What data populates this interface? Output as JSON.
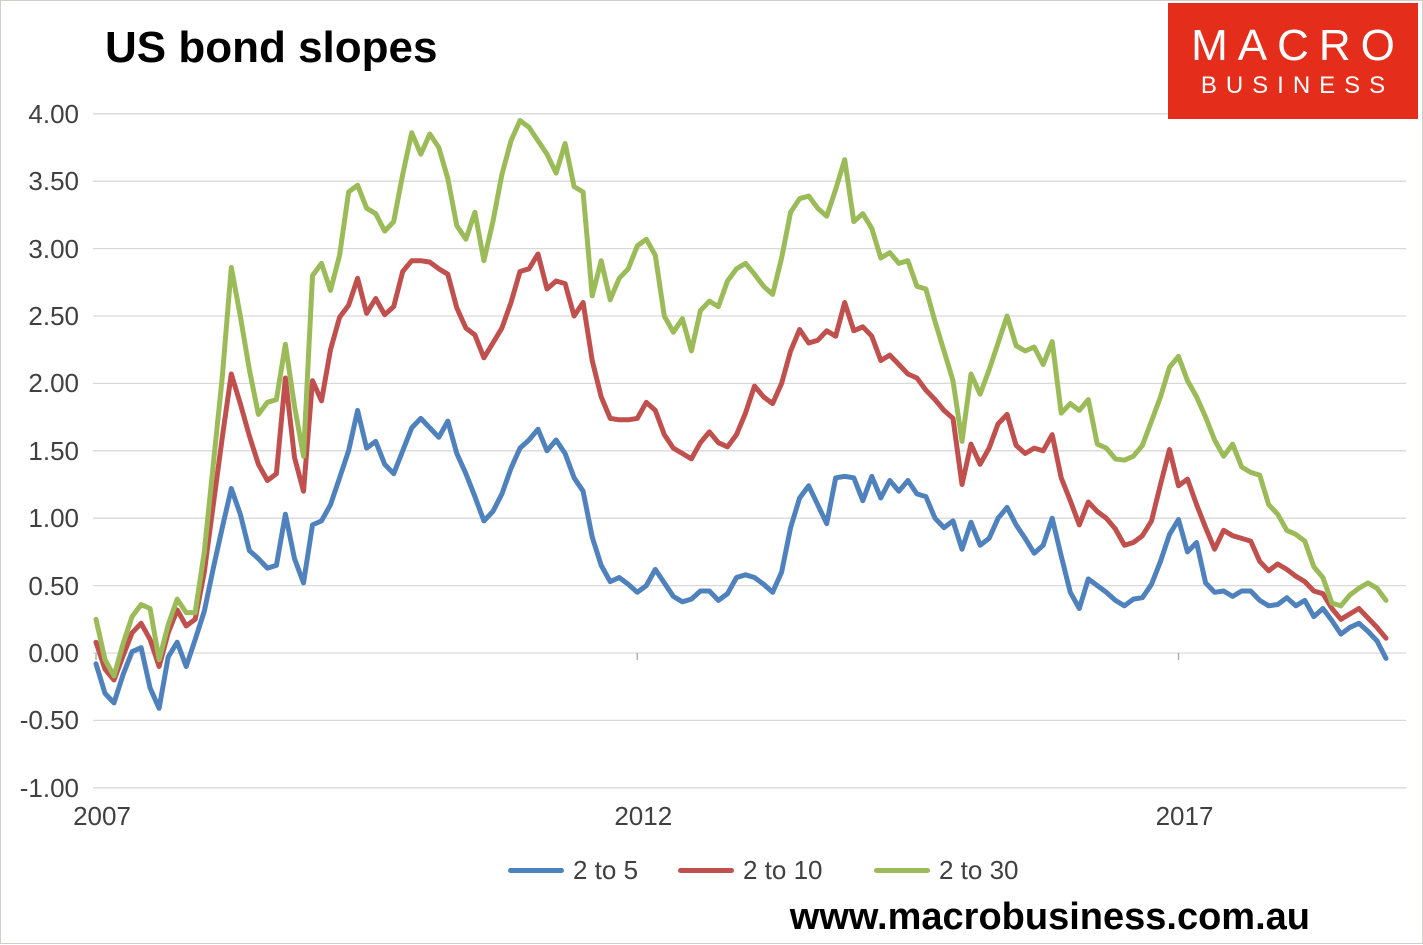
{
  "title": "US bond slopes",
  "logo": {
    "line1": "MACRO",
    "line2": "BUSINESS",
    "bg_color": "#e52d1c",
    "text_color": "#ffffff"
  },
  "watermark": "www.macrobusiness.com.au",
  "chart_data": {
    "type": "line",
    "title": "US bond slopes",
    "xlabel": "",
    "ylabel": "",
    "ylim": [
      -1.0,
      4.0
    ],
    "ytick_step": 0.5,
    "grid": true,
    "legend_position": "bottom",
    "y_tick_labels": [
      "4.00",
      "3.50",
      "3.00",
      "2.50",
      "2.00",
      "1.50",
      "1.00",
      "0.50",
      "0.00",
      "-0.50",
      "-1.00"
    ],
    "x_ticks": [
      {
        "label": "2007",
        "month_index": 0
      },
      {
        "label": "2012",
        "month_index": 60
      },
      {
        "label": "2017",
        "month_index": 120
      }
    ],
    "categories": [
      "2007-01",
      "2007-02",
      "2007-03",
      "2007-04",
      "2007-05",
      "2007-06",
      "2007-07",
      "2007-08",
      "2007-09",
      "2007-10",
      "2007-11",
      "2007-12",
      "2008-01",
      "2008-02",
      "2008-03",
      "2008-04",
      "2008-05",
      "2008-06",
      "2008-07",
      "2008-08",
      "2008-09",
      "2008-10",
      "2008-11",
      "2008-12",
      "2009-01",
      "2009-02",
      "2009-03",
      "2009-04",
      "2009-05",
      "2009-06",
      "2009-07",
      "2009-08",
      "2009-09",
      "2009-10",
      "2009-11",
      "2009-12",
      "2010-01",
      "2010-02",
      "2010-03",
      "2010-04",
      "2010-05",
      "2010-06",
      "2010-07",
      "2010-08",
      "2010-09",
      "2010-10",
      "2010-11",
      "2010-12",
      "2011-01",
      "2011-02",
      "2011-03",
      "2011-04",
      "2011-05",
      "2011-06",
      "2011-07",
      "2011-08",
      "2011-09",
      "2011-10",
      "2011-11",
      "2011-12",
      "2012-01",
      "2012-02",
      "2012-03",
      "2012-04",
      "2012-05",
      "2012-06",
      "2012-07",
      "2012-08",
      "2012-09",
      "2012-10",
      "2012-11",
      "2012-12",
      "2013-01",
      "2013-02",
      "2013-03",
      "2013-04",
      "2013-05",
      "2013-06",
      "2013-07",
      "2013-08",
      "2013-09",
      "2013-10",
      "2013-11",
      "2013-12",
      "2014-01",
      "2014-02",
      "2014-03",
      "2014-04",
      "2014-05",
      "2014-06",
      "2014-07",
      "2014-08",
      "2014-09",
      "2014-10",
      "2014-11",
      "2014-12",
      "2015-01",
      "2015-02",
      "2015-03",
      "2015-04",
      "2015-05",
      "2015-06",
      "2015-07",
      "2015-08",
      "2015-09",
      "2015-10",
      "2015-11",
      "2015-12",
      "2016-01",
      "2016-02",
      "2016-03",
      "2016-04",
      "2016-05",
      "2016-06",
      "2016-07",
      "2016-08",
      "2016-09",
      "2016-10",
      "2016-11",
      "2016-12",
      "2017-01",
      "2017-02",
      "2017-03",
      "2017-04",
      "2017-05",
      "2017-06",
      "2017-07",
      "2017-08",
      "2017-09",
      "2017-10",
      "2017-11",
      "2017-12",
      "2018-01",
      "2018-02",
      "2018-03",
      "2018-04",
      "2018-05",
      "2018-06",
      "2018-07",
      "2018-08",
      "2018-09",
      "2018-10",
      "2018-11",
      "2018-12"
    ],
    "series": [
      {
        "name": "2 to 5",
        "color": "#4F81BD",
        "values": [
          -0.08,
          -0.3,
          -0.37,
          -0.16,
          0.01,
          0.04,
          -0.26,
          -0.41,
          -0.03,
          0.08,
          -0.1,
          0.1,
          0.31,
          0.63,
          0.93,
          1.22,
          1.03,
          0.76,
          0.7,
          0.63,
          0.65,
          1.03,
          0.7,
          0.52,
          0.95,
          0.98,
          1.1,
          1.3,
          1.5,
          1.8,
          1.52,
          1.57,
          1.4,
          1.33,
          1.5,
          1.67,
          1.74,
          1.67,
          1.6,
          1.72,
          1.48,
          1.33,
          1.16,
          0.98,
          1.05,
          1.18,
          1.37,
          1.52,
          1.58,
          1.66,
          1.5,
          1.58,
          1.48,
          1.3,
          1.2,
          0.86,
          0.65,
          0.53,
          0.56,
          0.51,
          0.45,
          0.5,
          0.62,
          0.52,
          0.42,
          0.38,
          0.4,
          0.46,
          0.46,
          0.39,
          0.44,
          0.56,
          0.58,
          0.56,
          0.51,
          0.45,
          0.6,
          0.93,
          1.15,
          1.24,
          1.1,
          0.96,
          1.3,
          1.31,
          1.3,
          1.13,
          1.31,
          1.15,
          1.28,
          1.2,
          1.28,
          1.18,
          1.16,
          1.0,
          0.93,
          0.98,
          0.77,
          0.97,
          0.8,
          0.85,
          1.0,
          1.08,
          0.95,
          0.85,
          0.74,
          0.8,
          1.0,
          0.72,
          0.45,
          0.33,
          0.55,
          0.5,
          0.45,
          0.39,
          0.35,
          0.4,
          0.41,
          0.51,
          0.68,
          0.88,
          0.99,
          0.75,
          0.82,
          0.52,
          0.45,
          0.46,
          0.42,
          0.46,
          0.46,
          0.39,
          0.35,
          0.36,
          0.41,
          0.35,
          0.39,
          0.27,
          0.33,
          0.24,
          0.14,
          0.19,
          0.22,
          0.16,
          0.09,
          -0.04
        ]
      },
      {
        "name": "2 to 10",
        "color": "#C0504D",
        "values": [
          0.08,
          -0.12,
          -0.2,
          -0.02,
          0.15,
          0.22,
          0.1,
          -0.1,
          0.15,
          0.32,
          0.2,
          0.25,
          0.6,
          1.1,
          1.6,
          2.07,
          1.85,
          1.61,
          1.4,
          1.28,
          1.33,
          2.04,
          1.45,
          1.2,
          2.02,
          1.87,
          2.25,
          2.49,
          2.58,
          2.78,
          2.52,
          2.63,
          2.51,
          2.57,
          2.83,
          2.91,
          2.91,
          2.9,
          2.85,
          2.81,
          2.56,
          2.41,
          2.36,
          2.19,
          2.3,
          2.41,
          2.6,
          2.83,
          2.85,
          2.96,
          2.7,
          2.76,
          2.74,
          2.5,
          2.6,
          2.17,
          1.9,
          1.74,
          1.73,
          1.73,
          1.74,
          1.86,
          1.8,
          1.62,
          1.52,
          1.48,
          1.44,
          1.56,
          1.64,
          1.56,
          1.53,
          1.62,
          1.78,
          1.98,
          1.9,
          1.85,
          2.0,
          2.24,
          2.4,
          2.3,
          2.32,
          2.39,
          2.35,
          2.6,
          2.39,
          2.42,
          2.35,
          2.17,
          2.21,
          2.14,
          2.07,
          2.04,
          1.95,
          1.88,
          1.8,
          1.74,
          1.25,
          1.55,
          1.4,
          1.52,
          1.7,
          1.77,
          1.54,
          1.48,
          1.52,
          1.5,
          1.62,
          1.3,
          1.13,
          0.95,
          1.12,
          1.05,
          1.0,
          0.92,
          0.8,
          0.82,
          0.87,
          0.98,
          1.25,
          1.51,
          1.24,
          1.29,
          1.1,
          0.93,
          0.77,
          0.91,
          0.87,
          0.85,
          0.83,
          0.68,
          0.61,
          0.66,
          0.62,
          0.57,
          0.53,
          0.46,
          0.44,
          0.33,
          0.25,
          0.29,
          0.33,
          0.26,
          0.19,
          0.11
        ]
      },
      {
        "name": "2 to 30",
        "color": "#9BBB59",
        "values": [
          0.25,
          -0.05,
          -0.17,
          0.07,
          0.27,
          0.36,
          0.33,
          -0.05,
          0.21,
          0.4,
          0.3,
          0.3,
          0.75,
          1.4,
          2.05,
          2.86,
          2.5,
          2.1,
          1.77,
          1.86,
          1.88,
          2.29,
          1.83,
          1.46,
          2.8,
          2.89,
          2.69,
          2.95,
          3.42,
          3.47,
          3.3,
          3.26,
          3.13,
          3.2,
          3.55,
          3.86,
          3.7,
          3.85,
          3.75,
          3.52,
          3.17,
          3.07,
          3.27,
          2.91,
          3.2,
          3.55,
          3.8,
          3.95,
          3.9,
          3.8,
          3.7,
          3.56,
          3.78,
          3.46,
          3.42,
          2.65,
          2.91,
          2.62,
          2.78,
          2.85,
          3.02,
          3.07,
          2.95,
          2.5,
          2.38,
          2.48,
          2.24,
          2.54,
          2.61,
          2.57,
          2.76,
          2.85,
          2.89,
          2.81,
          2.72,
          2.66,
          2.93,
          3.27,
          3.37,
          3.39,
          3.3,
          3.24,
          3.44,
          3.66,
          3.2,
          3.26,
          3.15,
          2.93,
          2.97,
          2.89,
          2.91,
          2.72,
          2.7,
          2.46,
          2.24,
          2.02,
          1.57,
          2.07,
          1.92,
          2.1,
          2.3,
          2.5,
          2.28,
          2.24,
          2.27,
          2.14,
          2.31,
          1.78,
          1.85,
          1.8,
          1.88,
          1.55,
          1.52,
          1.44,
          1.43,
          1.46,
          1.54,
          1.72,
          1.9,
          2.12,
          2.2,
          2.02,
          1.9,
          1.75,
          1.58,
          1.46,
          1.55,
          1.38,
          1.34,
          1.32,
          1.1,
          1.03,
          0.91,
          0.88,
          0.83,
          0.64,
          0.56,
          0.37,
          0.35,
          0.43,
          0.48,
          0.52,
          0.48,
          0.39
        ]
      }
    ],
    "legend": {
      "items": [
        {
          "label": "2 to 5",
          "color": "#4F81BD"
        },
        {
          "label": "2 to 10",
          "color": "#C0504D"
        },
        {
          "label": "2 to 30",
          "color": "#9BBB59"
        }
      ]
    },
    "style": {
      "gridline_color": "#d9d9d9",
      "tick_color": "#a6a6a6",
      "axis_label_color": "#404040",
      "line_width": 5
    }
  }
}
